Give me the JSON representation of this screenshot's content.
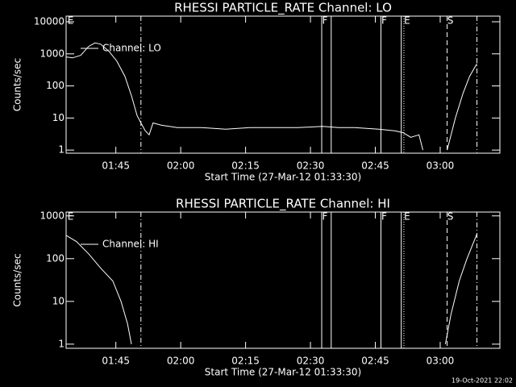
{
  "chart_data": [
    {
      "type": "line",
      "title": "RHESSI PARTICLE_RATE Channel: LO",
      "xlabel": "Start Time (27-Mar-12 01:33:30)",
      "ylabel": "Counts/sec",
      "log_y": true,
      "legend": "upper left",
      "xlim": [
        93.5,
        193.8
      ],
      "ylim": [
        0.8,
        15000
      ],
      "xticks": [
        {
          "value": 105,
          "label": "01:45"
        },
        {
          "value": 120,
          "label": "02:00"
        },
        {
          "value": 135,
          "label": "02:15"
        },
        {
          "value": 150,
          "label": "02:30"
        },
        {
          "value": 165,
          "label": "02:45"
        },
        {
          "value": 180,
          "label": "03:00"
        }
      ],
      "yticks": [
        1,
        10,
        100,
        1000,
        10000
      ],
      "series": [
        {
          "name": "Channel: LO",
          "color": "#ffffff",
          "x": [
            93.5,
            95.0,
            96.9,
            98.7,
            100.2,
            101.5,
            103.4,
            105.2,
            107.1,
            108.6,
            109.9,
            110.8,
            111.8,
            112.7,
            113.6,
            115.5,
            119.2,
            124.8,
            130.4,
            136.0,
            141.6,
            147.2,
            152.8,
            156.5,
            160.2,
            165.8,
            169.5,
            171.4,
            173.2,
            175.1,
            176.0,
            176.5,
            181.6,
            183.5,
            185.3,
            186.8,
            188.5
          ],
          "values": [
            800,
            750,
            900,
            1700,
            2200,
            2000,
            1200,
            600,
            200,
            50,
            12,
            7,
            4,
            3,
            7,
            6,
            5,
            5,
            4.5,
            5,
            5,
            5,
            5.5,
            5,
            5,
            4.5,
            4,
            3.5,
            2.5,
            3,
            1,
            null,
            1,
            10,
            60,
            200,
            500
          ]
        }
      ],
      "markers": [
        {
          "x": 93.8,
          "label": "E",
          "style": "none"
        },
        {
          "x": 110.8,
          "style": "dashdot"
        },
        {
          "x": 152.6,
          "label": "F",
          "style": "solid"
        },
        {
          "x": 154.8,
          "style": "solid"
        },
        {
          "x": 166.3,
          "label": "F",
          "style": "solid"
        },
        {
          "x": 171.0,
          "style": "solid"
        },
        {
          "x": 171.6,
          "label": "E",
          "style": "dotted"
        },
        {
          "x": 181.6,
          "label": "S",
          "style": "dashed"
        },
        {
          "x": 188.5,
          "style": "dashdot"
        }
      ]
    },
    {
      "type": "line",
      "title": "RHESSI PARTICLE_RATE Channel: HI",
      "xlabel": "Start Time (27-Mar-12 01:33:30)",
      "ylabel": "Counts/sec",
      "log_y": true,
      "legend": "upper left",
      "xlim": [
        93.5,
        193.8
      ],
      "ylim": [
        0.8,
        1230
      ],
      "xticks": [
        {
          "value": 105,
          "label": "01:45"
        },
        {
          "value": 120,
          "label": "02:00"
        },
        {
          "value": 135,
          "label": "02:15"
        },
        {
          "value": 150,
          "label": "02:30"
        },
        {
          "value": 165,
          "label": "02:45"
        },
        {
          "value": 180,
          "label": "03:00"
        }
      ],
      "yticks": [
        1,
        10,
        100,
        1000
      ],
      "series": [
        {
          "name": "Channel: HI",
          "color": "#ffffff",
          "x": [
            93.5,
            95.9,
            98.7,
            101.5,
            104.3,
            106.2,
            107.7,
            108.6,
            130.0,
            181.2,
            182.5,
            184.4,
            186.2,
            188.5
          ],
          "values": [
            350,
            250,
            130,
            60,
            30,
            10,
            3,
            1,
            null,
            1,
            5,
            30,
            100,
            380
          ]
        }
      ],
      "markers": [
        {
          "x": 93.8,
          "label": "E",
          "style": "none"
        },
        {
          "x": 110.8,
          "style": "dashdot"
        },
        {
          "x": 152.6,
          "label": "F",
          "style": "solid"
        },
        {
          "x": 154.8,
          "style": "solid"
        },
        {
          "x": 166.3,
          "label": "F",
          "style": "solid"
        },
        {
          "x": 171.0,
          "style": "solid"
        },
        {
          "x": 171.6,
          "label": "E",
          "style": "dotted"
        },
        {
          "x": 181.6,
          "label": "S",
          "style": "dashed"
        },
        {
          "x": 188.5,
          "style": "dashdot"
        }
      ]
    }
  ],
  "footer": "19-Oct-2021 22:02"
}
